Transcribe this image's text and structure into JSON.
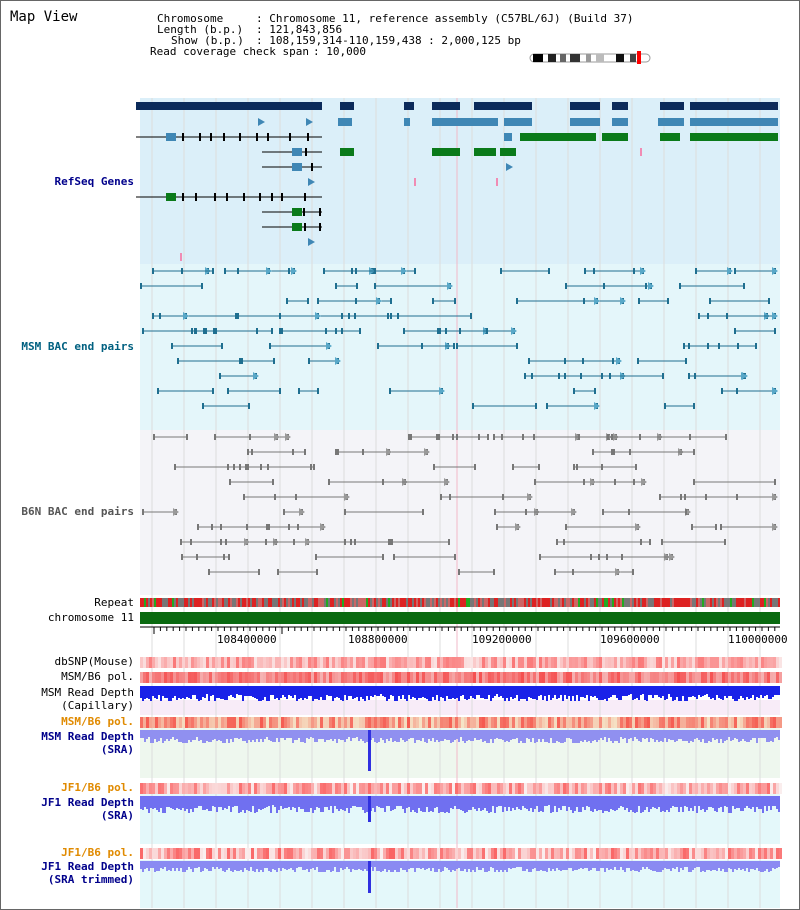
{
  "title": "Map View",
  "header": {
    "chromosome_key": "Chromosome",
    "chromosome_val": ": Chromosome 11, reference assembly (C57BL/6J) (Build 37)",
    "length_key": "Length (b.p.)",
    "length_val": ": 121,843,856",
    "show_key": "Show (b.p.)",
    "show_val": ": 108,159,314-110,159,438 : 2,000,125 bp",
    "span_key": "Read coverage check span",
    "span_val": ": 10,000"
  },
  "tracks": {
    "refseq": "RefSeq Genes",
    "msm_bac": "MSM BAC end pairs",
    "b6n_bac": "B6N BAC end pairs",
    "repeat": "Repeat",
    "chromosome": "chromosome 11",
    "dbsnp": "dbSNP(Mouse)",
    "msmb6pol": "MSM/B6 pol.",
    "msm_depth_cap": "MSM Read Depth",
    "msm_depth_cap_sub": "(Capillary)",
    "msmb6pol2": "MSM/B6 pol.",
    "msm_depth_sra": "MSM Read Depth",
    "msm_depth_sra_sub": "(SRA)",
    "jf1pol": "JF1/B6 pol.",
    "jf1_depth": "JF1 Read Depth",
    "jf1_depth_sub": "(SRA)",
    "jf1pol2": "JF1/B6 pol.",
    "jf1_depth_trim": "JF1 Read Depth",
    "jf1_depth_trim_sub": "(SRA trimmed)"
  },
  "axis": {
    "ticks": [
      "108400000",
      "108800000",
      "109200000",
      "109600000",
      "110000000"
    ]
  },
  "colors": {
    "refseq_bg": "#dbeff9",
    "msm_bg": "#e4f6fa",
    "b6n_bg": "#f4f4f8",
    "gene_dark": "#0b2a5a",
    "gene_mid": "#3f87b5",
    "gene_green": "#0a7a1a",
    "msm": "#1f6f90",
    "b6n": "#777777",
    "chrom": "#0a6a10"
  }
}
